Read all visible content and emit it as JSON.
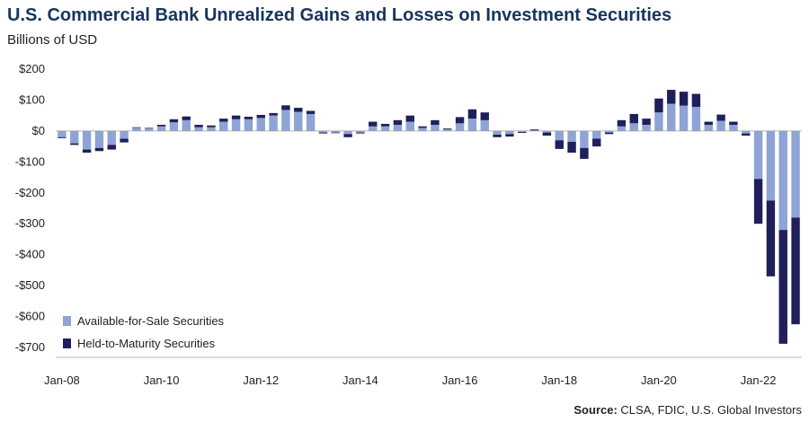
{
  "title": "U.S. Commercial Bank Unrealized Gains and Losses on Investment Securities",
  "subtitle": "Billions of USD",
  "source_label": "Source:",
  "source_text": "CLSA, FDIC, U.S. Global Investors",
  "colors": {
    "afs": "#8ea3d6",
    "htm": "#1f1f5c",
    "axis": "#bbbbbb"
  },
  "chart_data": {
    "type": "bar",
    "stacked": true,
    "ylabel": "Billions of USD",
    "ylim": [
      -700,
      200
    ],
    "yticks": [
      200,
      100,
      0,
      -100,
      -200,
      -300,
      -400,
      -500,
      -600,
      -700
    ],
    "ytick_labels": [
      "$200",
      "$100",
      "$0",
      "-$100",
      "-$200",
      "-$300",
      "-$400",
      "-$500",
      "-$600",
      "-$700"
    ],
    "xtick_labels": [
      {
        "label": "Jan-08",
        "index": 0
      },
      {
        "label": "Jan-10",
        "index": 8
      },
      {
        "label": "Jan-12",
        "index": 16
      },
      {
        "label": "Jan-14",
        "index": 24
      },
      {
        "label": "Jan-16",
        "index": 32
      },
      {
        "label": "Jan-18",
        "index": 40
      },
      {
        "label": "Jan-20",
        "index": 48
      },
      {
        "label": "Jan-22",
        "index": 56
      }
    ],
    "legend_position": "bottom-left",
    "series": [
      {
        "name": "Available-for-Sale Securities",
        "values": [
          -20,
          -40,
          -60,
          -55,
          -45,
          -25,
          12,
          8,
          15,
          28,
          35,
          12,
          12,
          30,
          38,
          38,
          42,
          50,
          68,
          62,
          55,
          -5,
          -5,
          -10,
          -5,
          15,
          15,
          20,
          30,
          10,
          20,
          5,
          25,
          40,
          35,
          -12,
          -10,
          -3,
          2,
          -5,
          -30,
          -35,
          -55,
          -25,
          -5,
          15,
          25,
          20,
          60,
          88,
          82,
          78,
          20,
          33,
          20,
          -8,
          -155,
          -225,
          -320,
          -280
        ]
      },
      {
        "name": "Held-to-Maturity Securities",
        "values": [
          -3,
          -5,
          -10,
          -10,
          -15,
          -12,
          0,
          2,
          5,
          10,
          12,
          8,
          6,
          10,
          12,
          8,
          10,
          8,
          15,
          13,
          10,
          -3,
          -2,
          -10,
          -3,
          15,
          8,
          15,
          20,
          5,
          15,
          3,
          20,
          30,
          25,
          -8,
          -8,
          -3,
          3,
          -10,
          -28,
          -35,
          -35,
          -25,
          -5,
          20,
          30,
          20,
          45,
          45,
          45,
          42,
          10,
          20,
          10,
          -7,
          -145,
          -245,
          -368,
          -345
        ]
      }
    ]
  }
}
